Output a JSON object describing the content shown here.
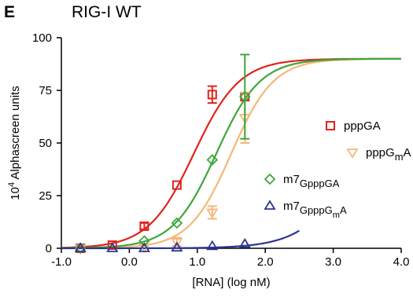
{
  "figure": {
    "panel_letter": "E",
    "title": "RIG-I WT"
  },
  "colors": {
    "pppGA": "#e0231d",
    "pppGmA": "#f5b778",
    "m7GpppGA": "#3ea63a",
    "m7GpppGmA": "#2b3691"
  },
  "chart_data": {
    "type": "scatter",
    "title": "RIG-I WT",
    "xlabel": "[RNA] (log nM)",
    "ylabel": "10^4 Alphascreen units",
    "xlim": [
      -1.0,
      4.0
    ],
    "ylim": [
      0,
      100
    ],
    "x_ticks": [
      "-1.0",
      "0.0",
      "1.0",
      "2.0",
      "3.0",
      "4.0"
    ],
    "y_ticks": [
      "0",
      "25",
      "50",
      "75",
      "100"
    ],
    "grid": false,
    "legend_position": "right",
    "series": [
      {
        "name": "pppGA",
        "key": "pppGA",
        "marker": "square",
        "points": [
          {
            "x": -0.72,
            "y": 0.0,
            "err": 0.5
          },
          {
            "x": -0.25,
            "y": 1.5,
            "err": 0.5
          },
          {
            "x": 0.22,
            "y": 10.5,
            "err": 1.5
          },
          {
            "x": 0.7,
            "y": 30.0,
            "err": 1.0
          },
          {
            "x": 1.22,
            "y": 73.0,
            "err": 4.0
          },
          {
            "x": 1.7,
            "y": 72.0,
            "err": 1.0
          }
        ],
        "fit": {
          "bottom": 0,
          "top": 90,
          "logEC50": 0.95,
          "hill": 1.3,
          "xrange": [
            -1.0,
            4.0
          ]
        }
      },
      {
        "name": "pppG_mA",
        "key": "pppGmA",
        "marker": "triangle-down",
        "points": [
          {
            "x": -0.72,
            "y": 0.0,
            "err": 0.5
          },
          {
            "x": 0.22,
            "y": 0.5,
            "err": 0.5
          },
          {
            "x": 0.7,
            "y": 3.0,
            "err": 2.0
          },
          {
            "x": 1.22,
            "y": 17.0,
            "err": 3.0
          },
          {
            "x": 1.7,
            "y": 62.0,
            "err": 12.0
          }
        ],
        "fit": {
          "bottom": 0,
          "top": 90,
          "logEC50": 1.5,
          "hill": 1.4,
          "xrange": [
            -1.0,
            4.0
          ]
        }
      },
      {
        "name": "m7GpppGA",
        "key": "m7GpppGA",
        "marker": "diamond",
        "points": [
          {
            "x": -0.72,
            "y": 0.0,
            "err": 0.5
          },
          {
            "x": 0.22,
            "y": 3.5,
            "err": 0.5
          },
          {
            "x": 0.7,
            "y": 12.0,
            "err": 0.8
          },
          {
            "x": 1.22,
            "y": 42.0,
            "err": 1.0
          },
          {
            "x": 1.7,
            "y": 72.0,
            "err": 20.0
          }
        ],
        "fit": {
          "bottom": 0,
          "top": 90,
          "logEC50": 1.28,
          "hill": 1.35,
          "xrange": [
            -1.0,
            4.0
          ]
        }
      },
      {
        "name": "m7GpppG_mA",
        "key": "m7GpppGmA",
        "marker": "triangle-up",
        "points": [
          {
            "x": -0.72,
            "y": 0.0,
            "err": 0.3
          },
          {
            "x": -0.25,
            "y": 0.0,
            "err": 0.3
          },
          {
            "x": 0.22,
            "y": 0.0,
            "err": 0.3
          },
          {
            "x": 0.7,
            "y": 0.3,
            "err": 0.3
          },
          {
            "x": 1.22,
            "y": 1.0,
            "err": 0.3
          },
          {
            "x": 1.7,
            "y": 2.0,
            "err": 0.5
          }
        ],
        "fit": {
          "bottom": 0,
          "top": 90,
          "logEC50": 3.4,
          "hill": 1.1,
          "xrange": [
            -1.0,
            2.5
          ]
        }
      }
    ],
    "legend": [
      {
        "key": "pppGA",
        "marker": "square",
        "parts": [
          {
            "t": "pppGA",
            "s": "n"
          }
        ]
      },
      {
        "key": "pppGmA",
        "marker": "triangle-down",
        "parts": [
          {
            "t": "pppG",
            "s": "n"
          },
          {
            "t": "m",
            "s": "sub"
          },
          {
            "t": "A",
            "s": "n"
          }
        ]
      },
      {
        "key": "m7GpppGA",
        "marker": "diamond",
        "parts": [
          {
            "t": "m7",
            "s": "n"
          },
          {
            "t": "GpppGA",
            "s": "sub"
          }
        ]
      },
      {
        "key": "m7GpppGmA",
        "marker": "triangle-up",
        "parts": [
          {
            "t": "m7",
            "s": "n"
          },
          {
            "t": "GpppG",
            "s": "sub"
          },
          {
            "t": "m",
            "s": "subsub"
          },
          {
            "t": "A",
            "s": "sub"
          }
        ]
      }
    ]
  }
}
